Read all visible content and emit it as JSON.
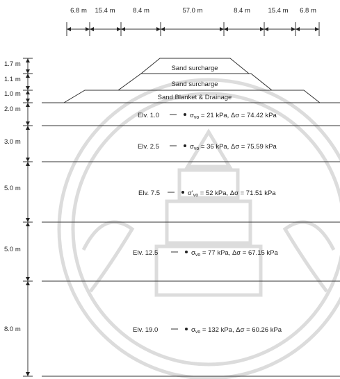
{
  "top_dimensions": [
    "6.8 m",
    "15.4 m",
    "8.4 m",
    "57.0 m",
    "8.4 m",
    "15.4 m",
    "6.8 m"
  ],
  "fill_layers": [
    "Sand surcharge",
    "Sand surcharge",
    "Sand Blanket & Drainage"
  ],
  "fill_thicknesses": [
    "1.7 m",
    "1.1 m",
    "1.0 m"
  ],
  "soil_layers": [
    {
      "thickness": "2.0 m",
      "elev": "Elv. 1.0",
      "sigma_sym": "σ",
      "sigma_sub": "vo",
      "sigma_val": " = 21 kPa, Δσ = 74.42 kPa"
    },
    {
      "thickness": "3.0 m",
      "elev": "Elv. 2.5",
      "sigma_sym": "σ",
      "sigma_sub": "vo",
      "sigma_val": " = 36 kPa, Δσ = 75.59 kPa"
    },
    {
      "thickness": "5.0 m",
      "elev": "Elv. 7.5",
      "sigma_sym": "σ'",
      "sigma_sub": "vo",
      "sigma_val": " = 52 kPa, Δσ = 71.51 kPa"
    },
    {
      "thickness": "5.0 m",
      "elev": "Elv. 12.5",
      "sigma_sym": "σ",
      "sigma_sub": "vo",
      "sigma_val": " = 77 kPa, Δσ = 67.15 kPa"
    },
    {
      "thickness": "8.0 m",
      "elev": "Elv. 19.0",
      "sigma_sym": "σ",
      "sigma_sub": "vo",
      "sigma_val": " = 132 kPa, Δσ = 60.26 kPa"
    }
  ]
}
